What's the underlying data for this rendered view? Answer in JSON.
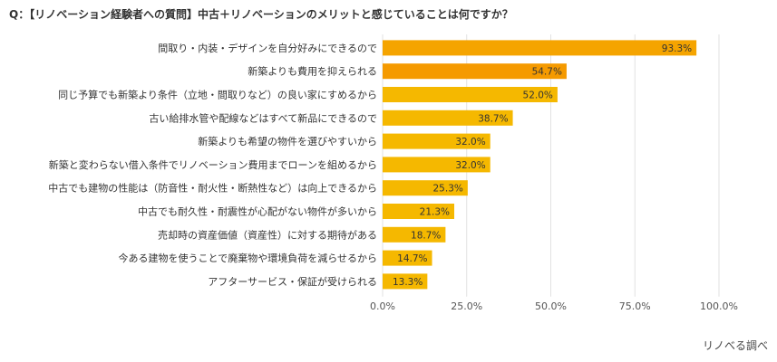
{
  "title": "Q：【リノベーション経験者への質問】中古＋リノベーションのメリットと感じていることは何ですか？",
  "source": "リノべる調べ",
  "colors": {
    "bar": "#F5B800",
    "bar_highlight": "#F5A400",
    "bar_highlight_2": "#F59A00",
    "grid": "#E2E2E2",
    "axis_text": "#555555",
    "label_text": "#333333"
  },
  "chart_data": {
    "type": "bar",
    "orientation": "horizontal",
    "categories": [
      "間取り・内装・デザインを自分好みにできるので",
      "新築よりも費用を抑えられる",
      "同じ予算でも新築より条件（立地・間取りなど）の良い家にすめるから",
      "古い給排水管や配線などはすべて新品にできるので",
      "新築よりも希望の物件を選びやすいから",
      "新築と変わらない借入条件でリノベーション費用までローンを組めるから",
      "中古でも建物の性能は（防音性・耐火性・断熱性など）は向上できるから",
      "中古でも耐久性・耐震性が心配がない物件が多いから",
      "売却時の資産価値（資産性）に対する期待がある",
      "今ある建物を使うことで廃棄物や環境負荷を減らせるから",
      "アフターサービス・保証が受けられる"
    ],
    "values": [
      93.3,
      54.7,
      52.0,
      38.7,
      32.0,
      32.0,
      25.3,
      21.3,
      18.7,
      14.7,
      13.3
    ],
    "value_labels": [
      "93.3%",
      "54.7%",
      "52.0%",
      "38.7%",
      "32.0%",
      "32.0%",
      "25.3%",
      "21.3%",
      "18.7%",
      "14.7%",
      "13.3%"
    ],
    "xlim": [
      0,
      100
    ],
    "xticks": [
      0,
      25,
      50,
      75,
      100
    ],
    "xtick_labels": [
      "0.0%",
      "25.0%",
      "50.0%",
      "75.0%",
      "100.0%"
    ],
    "grid": true,
    "legend": "none"
  }
}
